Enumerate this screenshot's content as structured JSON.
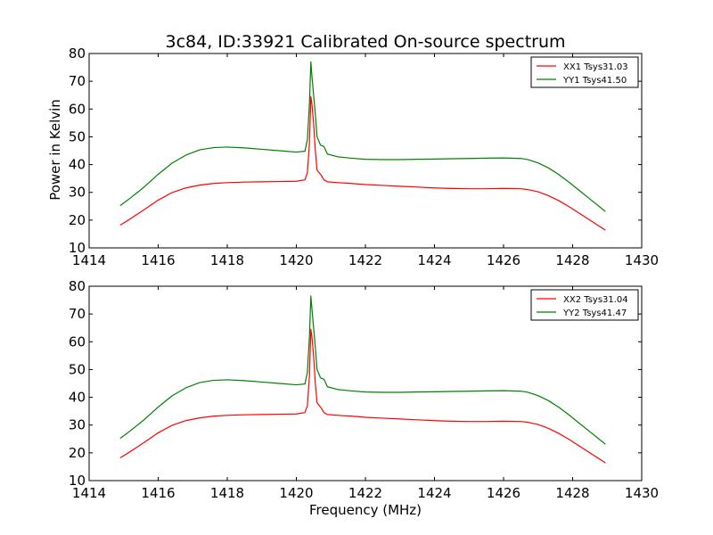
{
  "title": "3c84, ID:33921 Calibrated On-source spectrum",
  "chart_data": [
    {
      "type": "line",
      "ylabel": "Power in Kelvin",
      "xlabel": "",
      "xlim": [
        1414,
        1430
      ],
      "ylim": [
        10,
        80
      ],
      "xticks": [
        1414,
        1416,
        1418,
        1420,
        1422,
        1424,
        1426,
        1428,
        1430
      ],
      "yticks": [
        10,
        20,
        30,
        40,
        50,
        60,
        70,
        80
      ],
      "legend_position": "top-right",
      "series": [
        {
          "name": "XX1 Tsys31.03",
          "color": "#ff0000",
          "x": [
            1414.9,
            1415.2,
            1415.6,
            1416.0,
            1416.4,
            1416.8,
            1417.2,
            1417.6,
            1418.0,
            1418.5,
            1419.0,
            1419.5,
            1420.0,
            1420.25,
            1420.32,
            1420.38,
            1420.42,
            1420.45,
            1420.5,
            1420.55,
            1420.6,
            1420.7,
            1420.8,
            1420.9,
            1421.2,
            1421.6,
            1422.0,
            1422.5,
            1423.0,
            1423.5,
            1424.0,
            1424.5,
            1425.0,
            1425.5,
            1426.0,
            1426.5,
            1426.7,
            1427.0,
            1427.3,
            1427.6,
            1427.9,
            1428.2,
            1428.5,
            1428.8,
            1428.95
          ],
          "y": [
            18.2,
            20.5,
            23.8,
            27.2,
            29.9,
            31.6,
            32.6,
            33.2,
            33.5,
            33.7,
            33.8,
            33.9,
            34.0,
            34.5,
            37,
            48,
            64.5,
            62,
            55,
            45,
            38,
            36.5,
            34.5,
            33.8,
            33.5,
            33.2,
            32.8,
            32.5,
            32.2,
            31.9,
            31.6,
            31.4,
            31.3,
            31.3,
            31.4,
            31.3,
            31.0,
            30.2,
            28.8,
            27.0,
            24.8,
            22.4,
            20.0,
            17.6,
            16.4
          ]
        },
        {
          "name": "YY1 Tsys41.50",
          "color": "#008000",
          "x": [
            1414.9,
            1415.2,
            1415.6,
            1416.0,
            1416.4,
            1416.8,
            1417.2,
            1417.6,
            1418.0,
            1418.5,
            1419.0,
            1419.5,
            1420.0,
            1420.25,
            1420.32,
            1420.38,
            1420.42,
            1420.45,
            1420.5,
            1420.55,
            1420.6,
            1420.7,
            1420.8,
            1420.9,
            1421.2,
            1421.6,
            1422.0,
            1422.5,
            1423.0,
            1423.5,
            1424.0,
            1424.5,
            1425.0,
            1425.5,
            1426.0,
            1426.5,
            1426.7,
            1427.0,
            1427.3,
            1427.6,
            1427.9,
            1428.2,
            1428.5,
            1428.8,
            1428.95
          ],
          "y": [
            25.2,
            28.0,
            32.0,
            36.5,
            40.5,
            43.4,
            45.3,
            46.1,
            46.3,
            46.0,
            45.5,
            45.0,
            44.5,
            44.8,
            49,
            62,
            77,
            72,
            65,
            58,
            50,
            47,
            46.5,
            43.8,
            42.8,
            42.3,
            41.9,
            41.8,
            41.8,
            41.9,
            42.0,
            42.1,
            42.2,
            42.3,
            42.4,
            42.2,
            41.8,
            40.6,
            38.8,
            36.4,
            33.6,
            30.6,
            27.6,
            24.6,
            23.1
          ]
        }
      ]
    },
    {
      "type": "line",
      "ylabel": "",
      "xlabel": "Frequency (MHz)",
      "xlim": [
        1414,
        1430
      ],
      "ylim": [
        10,
        80
      ],
      "xticks": [
        1414,
        1416,
        1418,
        1420,
        1422,
        1424,
        1426,
        1428,
        1430
      ],
      "yticks": [
        10,
        20,
        30,
        40,
        50,
        60,
        70,
        80
      ],
      "legend_position": "top-right",
      "series": [
        {
          "name": "XX2 Tsys31.04",
          "color": "#ff0000",
          "x": [
            1414.9,
            1415.2,
            1415.6,
            1416.0,
            1416.4,
            1416.8,
            1417.2,
            1417.6,
            1418.0,
            1418.5,
            1419.0,
            1419.5,
            1420.0,
            1420.25,
            1420.32,
            1420.38,
            1420.42,
            1420.45,
            1420.5,
            1420.55,
            1420.6,
            1420.7,
            1420.8,
            1420.9,
            1421.2,
            1421.6,
            1422.0,
            1422.5,
            1423.0,
            1423.5,
            1424.0,
            1424.5,
            1425.0,
            1425.5,
            1426.0,
            1426.5,
            1426.7,
            1427.0,
            1427.3,
            1427.6,
            1427.9,
            1428.2,
            1428.5,
            1428.8,
            1428.95
          ],
          "y": [
            18.2,
            20.5,
            23.8,
            27.2,
            29.9,
            31.6,
            32.6,
            33.2,
            33.5,
            33.7,
            33.8,
            33.9,
            34.0,
            34.5,
            37,
            48,
            64.5,
            62,
            55,
            45,
            38,
            36.5,
            34.5,
            33.8,
            33.5,
            33.2,
            32.8,
            32.5,
            32.2,
            31.9,
            31.6,
            31.4,
            31.3,
            31.3,
            31.4,
            31.3,
            31.0,
            30.2,
            28.8,
            27.0,
            24.8,
            22.4,
            20.0,
            17.6,
            16.4
          ]
        },
        {
          "name": "YY2 Tsys41.47",
          "color": "#008000",
          "x": [
            1414.9,
            1415.2,
            1415.6,
            1416.0,
            1416.4,
            1416.8,
            1417.2,
            1417.6,
            1418.0,
            1418.5,
            1419.0,
            1419.5,
            1420.0,
            1420.25,
            1420.32,
            1420.38,
            1420.42,
            1420.45,
            1420.5,
            1420.55,
            1420.6,
            1420.7,
            1420.8,
            1420.9,
            1421.2,
            1421.6,
            1422.0,
            1422.5,
            1423.0,
            1423.5,
            1424.0,
            1424.5,
            1425.0,
            1425.5,
            1426.0,
            1426.5,
            1426.7,
            1427.0,
            1427.3,
            1427.6,
            1427.9,
            1428.2,
            1428.5,
            1428.8,
            1428.95
          ],
          "y": [
            25.2,
            28.0,
            32.0,
            36.5,
            40.5,
            43.4,
            45.3,
            46.1,
            46.3,
            46.0,
            45.5,
            45.0,
            44.5,
            44.8,
            49,
            62,
            76.5,
            72,
            65,
            58,
            50,
            47,
            46.5,
            43.8,
            42.8,
            42.3,
            41.9,
            41.8,
            41.8,
            41.9,
            42.0,
            42.1,
            42.2,
            42.3,
            42.4,
            42.2,
            41.8,
            40.6,
            38.8,
            36.4,
            33.6,
            30.6,
            27.6,
            24.6,
            23.1
          ]
        }
      ]
    }
  ]
}
